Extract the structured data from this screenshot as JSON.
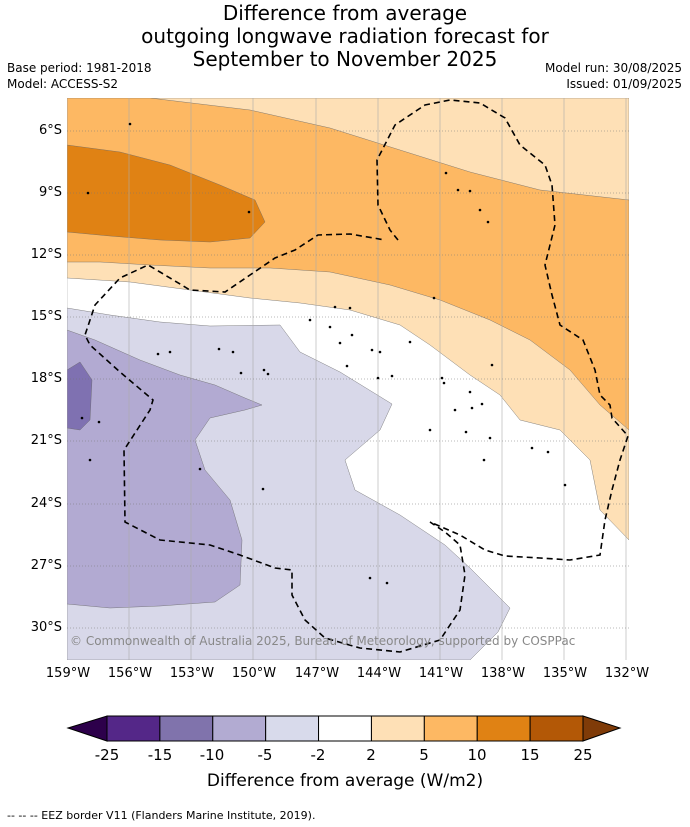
{
  "title": {
    "line1": "Difference from average",
    "line2": "outgoing longwave radiation forecast for",
    "line3": "September to November 2025"
  },
  "meta": {
    "base_period": "Base period: 1981-2018",
    "model": "Model: ACCESS-S2",
    "model_run": "Model run: 30/08/2025",
    "issued": "Issued: 01/09/2025"
  },
  "map": {
    "lat_labels": [
      "6°S",
      "9°S",
      "12°S",
      "15°S",
      "18°S",
      "21°S",
      "24°S",
      "27°S",
      "30°S"
    ],
    "lon_labels": [
      "159°W",
      "156°W",
      "153°W",
      "150°W",
      "147°W",
      "144°W",
      "141°W",
      "138°W",
      "135°W",
      "132°W"
    ],
    "copyright": "© Commonwealth of Australia 2025, Bureau of Meteorology, supported by COSPPac",
    "zone_colors": {
      "neg15_neg10": "#7f71b1",
      "neg10_neg5": "#b2aad2",
      "neg5_neg2": "#d8d8e9",
      "neg2_2": "#ffffff",
      "p2_5": "#fee0b6",
      "p5_10": "#fdb863",
      "p10_15": "#e08214"
    }
  },
  "colorbar": {
    "title": "Difference from average (W/m2)",
    "ticks": [
      "-25",
      "-15",
      "-10",
      "-5",
      "-2",
      "2",
      "5",
      "10",
      "15",
      "25"
    ],
    "colors": [
      "#542788",
      "#8073ac",
      "#b2abd2",
      "#d8daeb",
      "#ffffff",
      "#fee0b6",
      "#fdb863",
      "#e08214",
      "#b35806"
    ],
    "under_color": "#2d004b",
    "over_color": "#7f3b08"
  },
  "legend": "--  --  -- EEZ border V11 (Flanders Marine Institute, 2019)."
}
